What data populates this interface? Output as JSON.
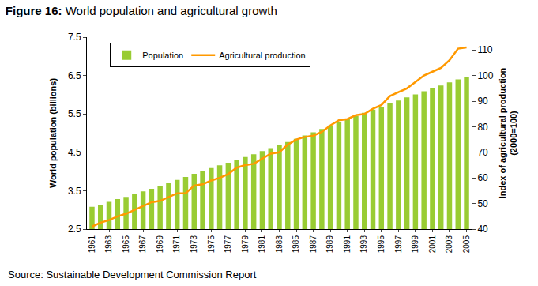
{
  "chart_data": {
    "type": "bar",
    "title": "Figure 16: World population and agricultural growth",
    "annotations": [
      "Source: Sustainable Development Commission Report"
    ],
    "y_label": "World population (billions)",
    "y2_label": "Index of agricultural production\n(2000=100)",
    "categories": [
      "1961",
      null,
      "1963",
      null,
      "1965",
      null,
      "1967",
      null,
      "1969",
      null,
      "1971",
      null,
      "1973",
      null,
      "1975",
      null,
      "1977",
      null,
      "1979",
      null,
      "1981",
      null,
      "1983",
      null,
      "1985",
      null,
      "1987",
      null,
      "1989",
      null,
      "1991",
      null,
      "1993",
      null,
      "1995",
      null,
      "1997",
      null,
      "1999",
      null,
      "2001",
      null,
      "2003",
      null,
      "2005"
    ],
    "series": [
      {
        "name": "Population",
        "type": "bar",
        "color": "#99cc33",
        "values": [
          3.08,
          3.14,
          3.21,
          3.28,
          3.34,
          3.41,
          3.48,
          3.55,
          3.63,
          3.7,
          3.78,
          3.86,
          3.94,
          4.02,
          4.09,
          4.16,
          4.23,
          4.3,
          4.38,
          4.45,
          4.53,
          4.61,
          4.69,
          4.77,
          4.85,
          4.94,
          5.02,
          5.11,
          5.2,
          5.28,
          5.37,
          5.45,
          5.53,
          5.61,
          5.69,
          5.77,
          5.85,
          5.93,
          6.01,
          6.09,
          6.17,
          6.24,
          6.32,
          6.4,
          6.47
        ]
      },
      {
        "name": "Agricultural production",
        "type": "line",
        "axis": "y2",
        "color": "#ff9900",
        "line_style": "solid",
        "values": [
          41,
          42.5,
          43.5,
          45,
          46,
          47.5,
          49,
          50.5,
          51,
          52.5,
          54,
          54,
          57,
          57.5,
          59,
          60,
          61.5,
          64,
          65,
          65.5,
          67.5,
          69.5,
          70,
          73,
          75,
          76,
          76.5,
          78,
          80.5,
          82.5,
          83,
          84.5,
          85,
          87,
          88.5,
          92,
          93.5,
          95,
          97.5,
          100,
          101.5,
          103,
          106,
          110.5,
          111
        ]
      }
    ],
    "ylim": [
      2.5,
      7.5
    ],
    "yticks": [
      2.5,
      3.5,
      4.5,
      5.5,
      6.5,
      7.5
    ],
    "y2lim": [
      40,
      115
    ],
    "y2ticks": [
      40,
      50,
      60,
      70,
      80,
      90,
      100,
      110
    ],
    "grid": false,
    "legend": "upper left"
  }
}
